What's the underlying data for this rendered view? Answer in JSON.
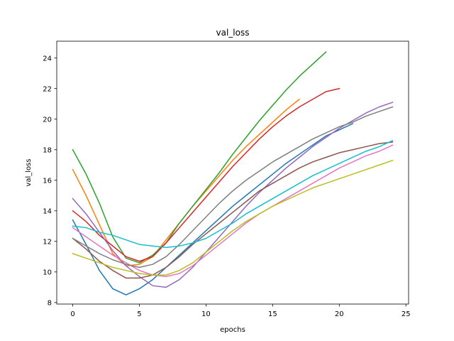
{
  "chart_data": {
    "type": "line",
    "title": "val_loss",
    "xlabel": "epochs",
    "ylabel": "val_loss",
    "xlim": [
      -1.2,
      25.2
    ],
    "ylim": [
      7.9,
      25.1
    ],
    "x_ticks": [
      0,
      5,
      10,
      15,
      20,
      25
    ],
    "y_ticks": [
      8,
      10,
      12,
      14,
      16,
      18,
      20,
      22,
      24
    ],
    "grid": false,
    "legend": "none",
    "series": [
      {
        "color": "#1f77b4",
        "x": [
          0,
          1,
          2,
          3,
          4,
          5,
          6,
          7,
          8,
          9,
          10,
          11,
          12,
          13,
          14,
          15,
          16,
          17,
          18,
          19,
          20,
          21
        ],
        "values": [
          13.4,
          11.8,
          10.1,
          8.9,
          8.5,
          8.9,
          9.5,
          10.3,
          11.1,
          11.9,
          12.7,
          13.5,
          14.3,
          15.0,
          15.7,
          16.4,
          17.1,
          17.7,
          18.3,
          18.9,
          19.3,
          19.7
        ]
      },
      {
        "color": "#ff7f0e",
        "x": [
          0,
          1,
          2,
          3,
          4,
          5,
          6,
          7,
          8,
          9,
          10,
          11,
          12,
          13,
          14,
          15,
          16,
          17
        ],
        "values": [
          16.7,
          15.0,
          13.1,
          11.2,
          10.4,
          10.5,
          11.0,
          12.1,
          13.2,
          14.3,
          15.3,
          16.3,
          17.3,
          18.2,
          19.0,
          19.8,
          20.6,
          21.3
        ]
      },
      {
        "color": "#2ca02c",
        "x": [
          0,
          1,
          2,
          3,
          4,
          5,
          6,
          7,
          8,
          9,
          10,
          11,
          12,
          13,
          14,
          15,
          16,
          17,
          18,
          19
        ],
        "values": [
          18.0,
          16.4,
          14.5,
          12.3,
          10.9,
          10.6,
          11.1,
          11.9,
          13.2,
          14.3,
          15.4,
          16.5,
          17.7,
          18.8,
          19.9,
          20.9,
          21.9,
          22.8,
          23.6,
          24.4
        ]
      },
      {
        "color": "#d62728",
        "x": [
          0,
          1,
          2,
          3,
          4,
          5,
          6,
          7,
          8,
          9,
          10,
          11,
          12,
          13,
          14,
          15,
          16,
          17,
          18,
          19,
          20
        ],
        "values": [
          14.0,
          13.3,
          12.4,
          11.7,
          11.0,
          10.7,
          11.0,
          11.9,
          12.9,
          13.9,
          14.9,
          15.9,
          16.9,
          17.8,
          18.7,
          19.5,
          20.2,
          20.8,
          21.3,
          21.8,
          22.0
        ]
      },
      {
        "color": "#9467bd",
        "x": [
          0,
          1,
          2,
          3,
          4,
          5,
          6,
          7,
          8,
          9,
          10,
          11,
          12,
          13,
          14,
          15,
          16,
          17,
          18,
          19,
          20,
          21,
          22,
          23,
          24
        ],
        "values": [
          14.8,
          13.8,
          12.6,
          11.4,
          10.4,
          9.7,
          9.1,
          9.0,
          9.5,
          10.3,
          11.3,
          12.3,
          13.3,
          14.3,
          15.2,
          16.0,
          16.8,
          17.5,
          18.2,
          18.8,
          19.4,
          19.9,
          20.4,
          20.8,
          21.1
        ]
      },
      {
        "color": "#8c564b",
        "x": [
          0,
          1,
          2,
          3,
          4,
          5,
          6,
          7,
          8,
          9,
          10,
          11,
          12,
          13,
          14,
          15,
          16,
          17,
          18,
          19,
          20,
          21,
          22,
          23,
          24
        ],
        "values": [
          12.2,
          11.5,
          10.7,
          10.1,
          9.6,
          9.6,
          9.8,
          10.3,
          11.0,
          11.8,
          12.5,
          13.2,
          13.9,
          14.6,
          15.3,
          15.8,
          16.3,
          16.8,
          17.2,
          17.5,
          17.8,
          18.0,
          18.2,
          18.4,
          18.5
        ]
      },
      {
        "color": "#e377c2",
        "x": [
          0,
          1,
          2,
          3,
          4,
          5,
          6,
          7,
          8,
          9,
          10,
          11,
          12,
          13,
          14,
          15,
          16,
          17,
          18,
          19,
          20,
          21,
          22,
          23,
          24
        ],
        "values": [
          12.9,
          12.3,
          11.7,
          11.1,
          10.6,
          10.1,
          9.8,
          9.7,
          9.9,
          10.4,
          11.1,
          11.8,
          12.5,
          13.2,
          13.8,
          14.3,
          14.8,
          15.3,
          15.8,
          16.3,
          16.8,
          17.2,
          17.6,
          17.9,
          18.3
        ]
      },
      {
        "color": "#7f7f7f",
        "x": [
          0,
          1,
          2,
          3,
          4,
          5,
          6,
          7,
          8,
          9,
          10,
          11,
          12,
          13,
          14,
          15,
          16,
          17,
          18,
          19,
          20,
          21,
          22,
          23,
          24
        ],
        "values": [
          12.2,
          11.7,
          11.2,
          10.8,
          10.5,
          10.3,
          10.5,
          11.0,
          11.8,
          12.7,
          13.6,
          14.5,
          15.3,
          16.0,
          16.6,
          17.2,
          17.7,
          18.2,
          18.7,
          19.1,
          19.5,
          19.8,
          20.2,
          20.5,
          20.8
        ]
      },
      {
        "color": "#bcbd22",
        "x": [
          0,
          1,
          2,
          3,
          4,
          5,
          6,
          7,
          8,
          9,
          10,
          11,
          12,
          13,
          14,
          15,
          16,
          17,
          18,
          19,
          20,
          21,
          22,
          23,
          24
        ],
        "values": [
          11.2,
          10.9,
          10.6,
          10.3,
          10.1,
          9.9,
          9.8,
          9.8,
          10.1,
          10.6,
          11.3,
          12.0,
          12.7,
          13.3,
          13.8,
          14.3,
          14.7,
          15.1,
          15.5,
          15.8,
          16.1,
          16.4,
          16.7,
          17.0,
          17.3
        ]
      },
      {
        "color": "#17becf",
        "x": [
          0,
          1,
          2,
          3,
          4,
          5,
          6,
          7,
          8,
          9,
          10,
          11,
          12,
          13,
          14,
          15,
          16,
          17,
          18,
          19,
          20,
          21,
          22,
          23,
          24
        ],
        "values": [
          13.0,
          12.9,
          12.6,
          12.4,
          12.1,
          11.8,
          11.7,
          11.6,
          11.7,
          11.9,
          12.2,
          12.7,
          13.2,
          13.8,
          14.3,
          14.8,
          15.3,
          15.8,
          16.3,
          16.7,
          17.1,
          17.5,
          17.9,
          18.2,
          18.6
        ]
      }
    ]
  }
}
